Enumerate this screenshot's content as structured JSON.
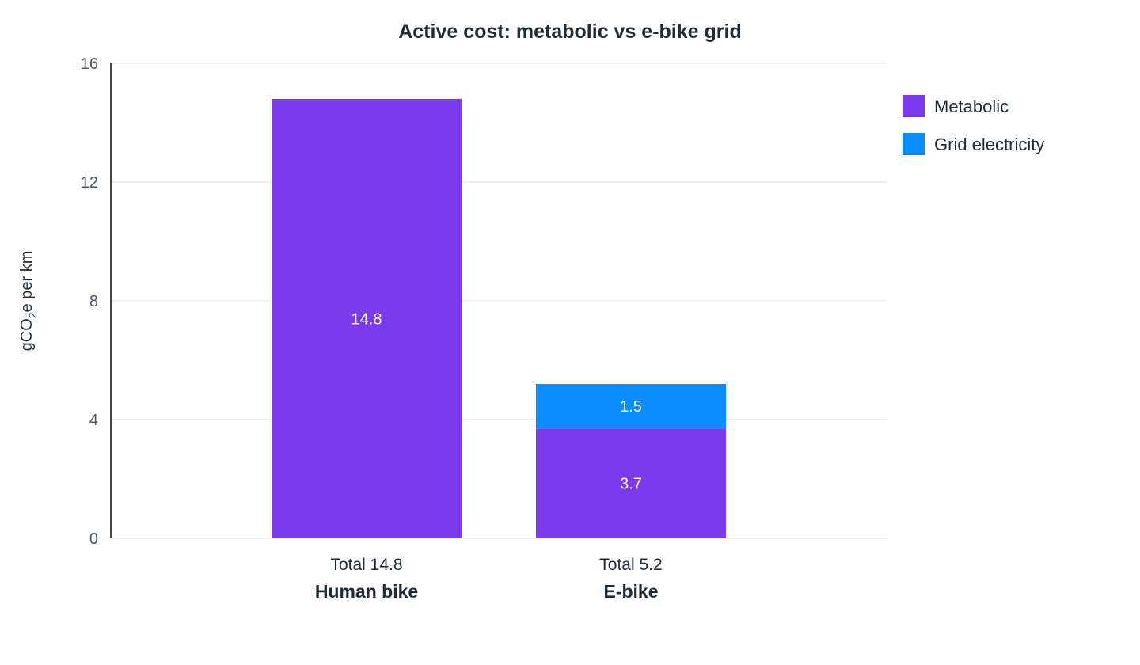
{
  "chart_data": {
    "type": "bar",
    "stacked": true,
    "title": "Active cost: metabolic vs e-bike grid",
    "ylabel": "gCO",
    "ylabel_sub": "2",
    "ylabel_suffix": "e per km",
    "xlabel": "",
    "categories": [
      "Human bike",
      "E-bike"
    ],
    "totals": [
      "Total 14.8",
      "Total 5.2"
    ],
    "ylim": [
      0,
      16
    ],
    "yticks": [
      0,
      4,
      8,
      12,
      16
    ],
    "grid": true,
    "legend_position": "right-top",
    "series": [
      {
        "name": "Metabolic",
        "color": "#7c3aed",
        "values": [
          14.8,
          3.7
        ],
        "labels": [
          "14.8",
          "3.7"
        ]
      },
      {
        "name": "Grid electricity",
        "color": "#0a8cff",
        "values": [
          0,
          1.5
        ],
        "labels": [
          "",
          "1.5"
        ]
      }
    ]
  }
}
